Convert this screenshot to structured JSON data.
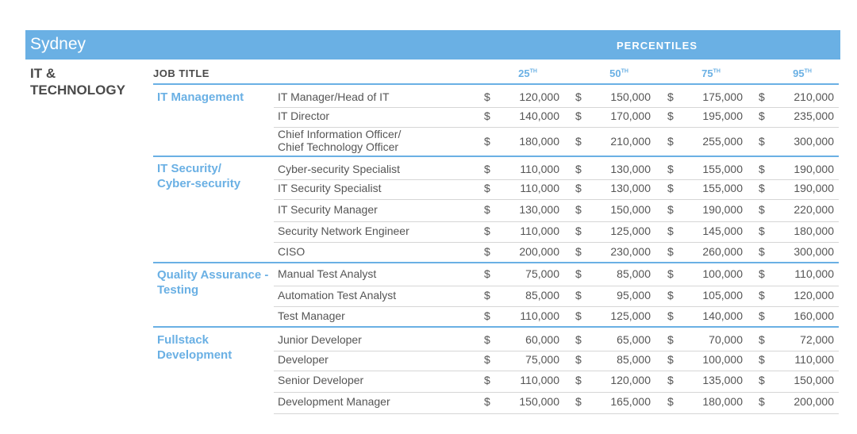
{
  "city": "Sydney",
  "percentiles_label": "PERCENTILES",
  "category": "IT &\nTECHNOLOGY",
  "header": {
    "job_title": "JOB TITLE",
    "p25": "25",
    "p50": "50",
    "p75": "75",
    "p95": "95",
    "suffix": "TH"
  },
  "currency": "$",
  "groups": [
    {
      "label": "IT Management",
      "rows": [
        {
          "title": "IT Manager/Head of IT",
          "values": [
            "120,000",
            "150,000",
            "175,000",
            "210,000"
          ]
        },
        {
          "title": "IT Director",
          "values": [
            "140,000",
            "170,000",
            "195,000",
            "235,000"
          ]
        },
        {
          "title": "Chief Information Officer/\nChief Technology Officer",
          "values": [
            "180,000",
            "210,000",
            "255,000",
            "300,000"
          ]
        }
      ]
    },
    {
      "label": "IT Security/\nCyber-security",
      "rows": [
        {
          "title": "Cyber-security Specialist",
          "values": [
            "110,000",
            "130,000",
            "155,000",
            "190,000"
          ]
        },
        {
          "title": "IT Security Specialist",
          "values": [
            "110,000",
            "130,000",
            "155,000",
            "190,000"
          ]
        },
        {
          "title": "IT Security Manager",
          "values": [
            "130,000",
            "150,000",
            "190,000",
            "220,000"
          ]
        },
        {
          "title": "Security Network Engineer",
          "values": [
            "110,000",
            "125,000",
            "145,000",
            "180,000"
          ]
        },
        {
          "title": "CISO",
          "values": [
            "200,000",
            "230,000",
            "260,000",
            "300,000"
          ]
        }
      ]
    },
    {
      "label": "Quality Assurance -\nTesting",
      "rows": [
        {
          "title": "Manual Test Analyst",
          "values": [
            "75,000",
            "85,000",
            "100,000",
            "110,000"
          ]
        },
        {
          "title": "Automation Test Analyst",
          "values": [
            "85,000",
            "95,000",
            "105,000",
            "120,000"
          ]
        },
        {
          "title": "Test Manager",
          "values": [
            "110,000",
            "125,000",
            "140,000",
            "160,000"
          ]
        }
      ]
    },
    {
      "label": "Fullstack\nDevelopment",
      "rows": [
        {
          "title": "Junior Developer",
          "values": [
            "60,000",
            "65,000",
            "70,000",
            "72,000"
          ]
        },
        {
          "title": "Developer",
          "values": [
            "75,000",
            "85,000",
            "100,000",
            "110,000"
          ]
        },
        {
          "title": "Senior Developer",
          "values": [
            "110,000",
            "120,000",
            "135,000",
            "150,000"
          ]
        },
        {
          "title": "Development Manager",
          "values": [
            "150,000",
            "165,000",
            "180,000",
            "200,000"
          ]
        }
      ]
    }
  ]
}
